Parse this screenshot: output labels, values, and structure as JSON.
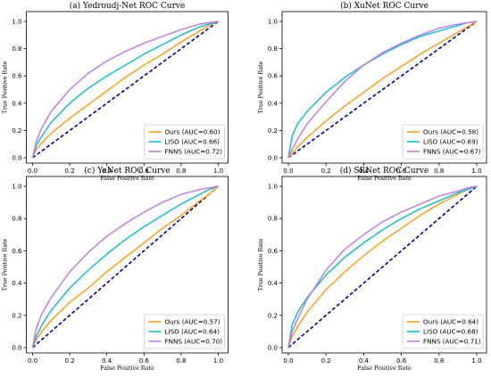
{
  "figure": {
    "background": "#ffffff"
  },
  "chart_data": [
    {
      "type": "line",
      "title": "(a) Yedroudj-Net ROC Curve",
      "xlabel": "False Positive Rate",
      "ylabel": "True Positive Rate",
      "xlim": [
        0,
        1
      ],
      "ylim": [
        0,
        1
      ],
      "xticks": [
        "0.0",
        "0.2",
        "0.4",
        "0.6",
        "0.8",
        "1.0"
      ],
      "yticks": [
        "0.0",
        "0.2",
        "0.4",
        "0.6",
        "0.8",
        "1.0"
      ],
      "grid": false,
      "legend_position": "lower-right",
      "diagonal": {
        "style": "dashed",
        "color": "#00008b"
      },
      "x": [
        0,
        0.02,
        0.05,
        0.1,
        0.2,
        0.3,
        0.4,
        0.5,
        0.6,
        0.7,
        0.8,
        0.9,
        0.95,
        1.0
      ],
      "series": [
        {
          "name": "Ours (AUC=0.60)",
          "color": "#ff9f1c",
          "values": [
            0,
            0.06,
            0.11,
            0.18,
            0.29,
            0.39,
            0.49,
            0.59,
            0.68,
            0.76,
            0.85,
            0.93,
            0.97,
            1.0
          ]
        },
        {
          "name": "LISO (AUC=0.66)",
          "color": "#17becf",
          "values": [
            0,
            0.09,
            0.16,
            0.26,
            0.4,
            0.51,
            0.6,
            0.68,
            0.76,
            0.83,
            0.9,
            0.96,
            0.98,
            1.0
          ]
        },
        {
          "name": "FNNS (AUC=0.72)",
          "color": "#c17ee0",
          "values": [
            0,
            0.12,
            0.22,
            0.34,
            0.5,
            0.62,
            0.71,
            0.78,
            0.84,
            0.89,
            0.94,
            0.98,
            0.99,
            1.0
          ]
        }
      ]
    },
    {
      "type": "line",
      "title": "(b) XuNet ROC Curve",
      "xlabel": "False Positive Rate",
      "ylabel": "True Positive Rate",
      "xlim": [
        0,
        1
      ],
      "ylim": [
        0,
        1
      ],
      "xticks": [
        "0.0",
        "0.2",
        "0.4",
        "0.6",
        "0.8",
        "1.0"
      ],
      "yticks": [
        "0.0",
        "0.2",
        "0.4",
        "0.6",
        "0.8",
        "1.0"
      ],
      "grid": false,
      "legend_position": "lower-right",
      "diagonal": {
        "style": "dashed",
        "color": "#00008b"
      },
      "x": [
        0,
        0.02,
        0.05,
        0.1,
        0.2,
        0.3,
        0.4,
        0.5,
        0.6,
        0.7,
        0.8,
        0.9,
        0.95,
        1.0
      ],
      "series": [
        {
          "name": "Ours (AUC=0.58)",
          "color": "#ff9f1c",
          "values": [
            0,
            0.03,
            0.08,
            0.15,
            0.27,
            0.38,
            0.48,
            0.58,
            0.67,
            0.76,
            0.84,
            0.92,
            0.96,
            1.0
          ]
        },
        {
          "name": "LISO (AUC=0.69)",
          "color": "#17becf",
          "values": [
            0,
            0.16,
            0.25,
            0.34,
            0.48,
            0.59,
            0.68,
            0.76,
            0.83,
            0.89,
            0.93,
            0.97,
            0.99,
            1.0
          ]
        },
        {
          "name": "FNNS (AUC=0.67)",
          "color": "#c17ee0",
          "values": [
            0,
            0.06,
            0.14,
            0.25,
            0.41,
            0.56,
            0.68,
            0.77,
            0.84,
            0.9,
            0.95,
            0.98,
            0.99,
            1.0
          ]
        }
      ]
    },
    {
      "type": "line",
      "title": "(c) YeNet ROC Curve",
      "xlabel": "False Positive Rate",
      "ylabel": "True Positive Rate",
      "xlim": [
        0,
        1
      ],
      "ylim": [
        0,
        1
      ],
      "xticks": [
        "0.0",
        "0.2",
        "0.4",
        "0.6",
        "0.8",
        "1.0"
      ],
      "yticks": [
        "0.0",
        "0.2",
        "0.4",
        "0.6",
        "0.8",
        "1.0"
      ],
      "grid": false,
      "legend_position": "lower-right",
      "diagonal": {
        "style": "dashed",
        "color": "#00008b"
      },
      "x": [
        0,
        0.02,
        0.05,
        0.1,
        0.2,
        0.3,
        0.4,
        0.5,
        0.6,
        0.7,
        0.8,
        0.9,
        0.95,
        1.0
      ],
      "series": [
        {
          "name": "Ours (AUC=0.57)",
          "color": "#ff9f1c",
          "values": [
            0,
            0.05,
            0.1,
            0.17,
            0.28,
            0.37,
            0.47,
            0.56,
            0.65,
            0.74,
            0.82,
            0.91,
            0.95,
            1.0
          ]
        },
        {
          "name": "LISO (AUC=0.64)",
          "color": "#17becf",
          "values": [
            0,
            0.07,
            0.14,
            0.23,
            0.37,
            0.48,
            0.58,
            0.67,
            0.75,
            0.82,
            0.89,
            0.95,
            0.98,
            1.0
          ]
        },
        {
          "name": "FNNS (AUC=0.70)",
          "color": "#c17ee0",
          "values": [
            0,
            0.12,
            0.21,
            0.31,
            0.47,
            0.59,
            0.69,
            0.77,
            0.84,
            0.9,
            0.95,
            0.98,
            0.99,
            1.0
          ]
        }
      ]
    },
    {
      "type": "line",
      "title": "(d) SRNet ROC Curve",
      "xlabel": "False Positive Rate",
      "ylabel": "True Positive Rate",
      "xlim": [
        0,
        1
      ],
      "ylim": [
        0,
        1
      ],
      "xticks": [
        "0.0",
        "0.2",
        "0.4",
        "0.6",
        "0.8",
        "1.0"
      ],
      "yticks": [
        "0.0",
        "0.2",
        "0.4",
        "0.6",
        "0.8",
        "1.0"
      ],
      "grid": false,
      "legend_position": "lower-right",
      "diagonal": {
        "style": "dashed",
        "color": "#00008b"
      },
      "x": [
        0,
        0.02,
        0.05,
        0.1,
        0.2,
        0.3,
        0.4,
        0.5,
        0.6,
        0.7,
        0.8,
        0.9,
        0.95,
        1.0
      ],
      "series": [
        {
          "name": "Ours (AUC=0.64)",
          "color": "#ff9f1c",
          "values": [
            0,
            0.07,
            0.13,
            0.22,
            0.36,
            0.47,
            0.57,
            0.66,
            0.74,
            0.82,
            0.89,
            0.95,
            0.98,
            1.0
          ]
        },
        {
          "name": "LISO (AUC=0.68)",
          "color": "#17becf",
          "values": [
            0,
            0.14,
            0.22,
            0.31,
            0.45,
            0.56,
            0.65,
            0.73,
            0.8,
            0.86,
            0.91,
            0.96,
            0.98,
            1.0
          ]
        },
        {
          "name": "FNNS (AUC=0.71)",
          "color": "#c17ee0",
          "values": [
            0,
            0.1,
            0.18,
            0.3,
            0.48,
            0.61,
            0.7,
            0.78,
            0.84,
            0.89,
            0.94,
            0.97,
            0.99,
            1.0
          ]
        }
      ]
    }
  ]
}
